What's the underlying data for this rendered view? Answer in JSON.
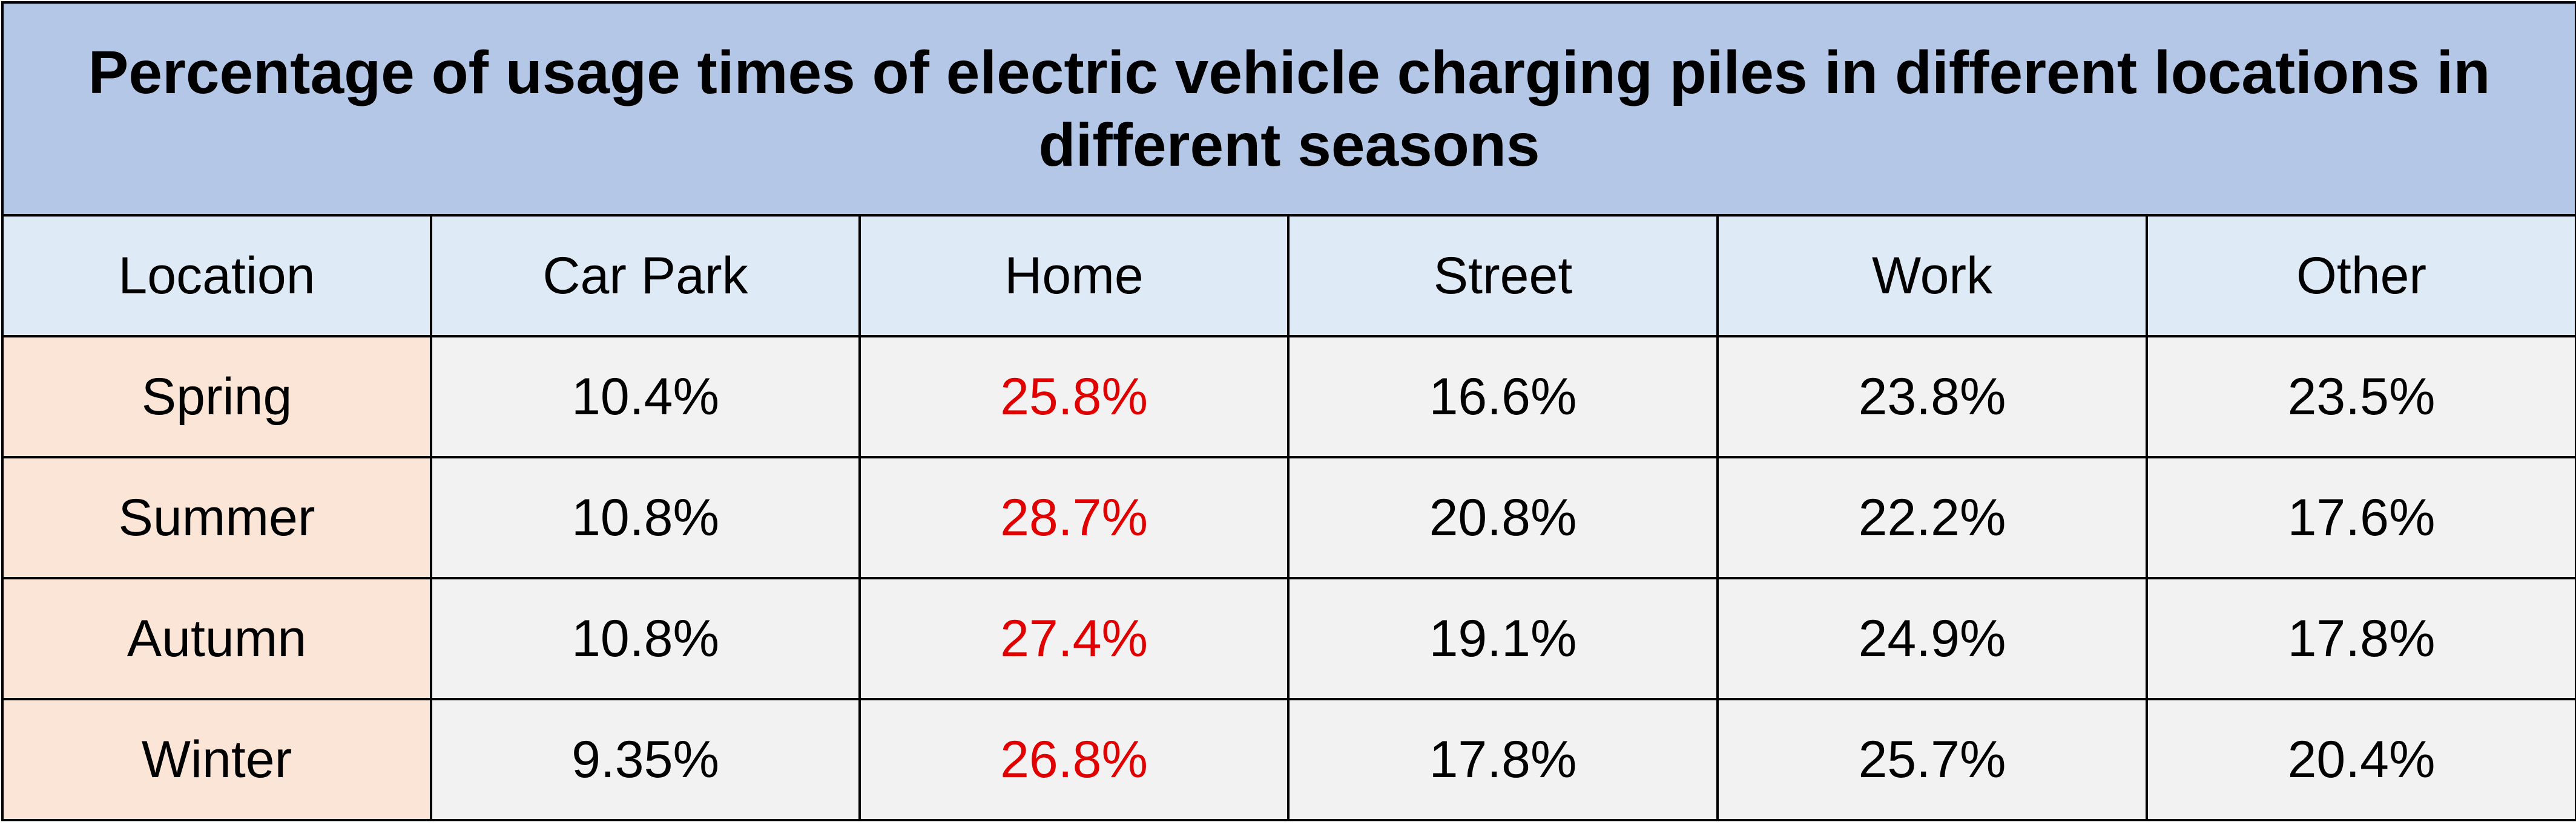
{
  "chart_data": {
    "type": "table",
    "title": "Percentage of usage times of electric vehicle charging piles in different locations in different seasons",
    "header": [
      "Location",
      "Car Park",
      "Home",
      "Street",
      "Work",
      "Other"
    ],
    "rows": [
      {
        "label": "Spring",
        "values": [
          "10.4%",
          "25.8%",
          "16.6%",
          "23.8%",
          "23.5%"
        ]
      },
      {
        "label": "Summer",
        "values": [
          "10.8%",
          "28.7%",
          "20.8%",
          "22.2%",
          "17.6%"
        ]
      },
      {
        "label": "Autumn",
        "values": [
          "10.8%",
          "27.4%",
          "19.1%",
          "24.9%",
          "17.8%"
        ]
      },
      {
        "label": "Winter",
        "values": [
          "9.35%",
          "26.8%",
          "17.8%",
          "25.7%",
          "20.4%"
        ]
      }
    ],
    "highlight_column": "Home"
  },
  "colors": {
    "title_bg": "#b4c7e7",
    "header_bg": "#deebf7",
    "row_label_bg": "#fbe5d6",
    "cell_bg": "#f2f2f2",
    "highlight_text": "#e00000",
    "text": "#000000",
    "border": "#000000"
  }
}
